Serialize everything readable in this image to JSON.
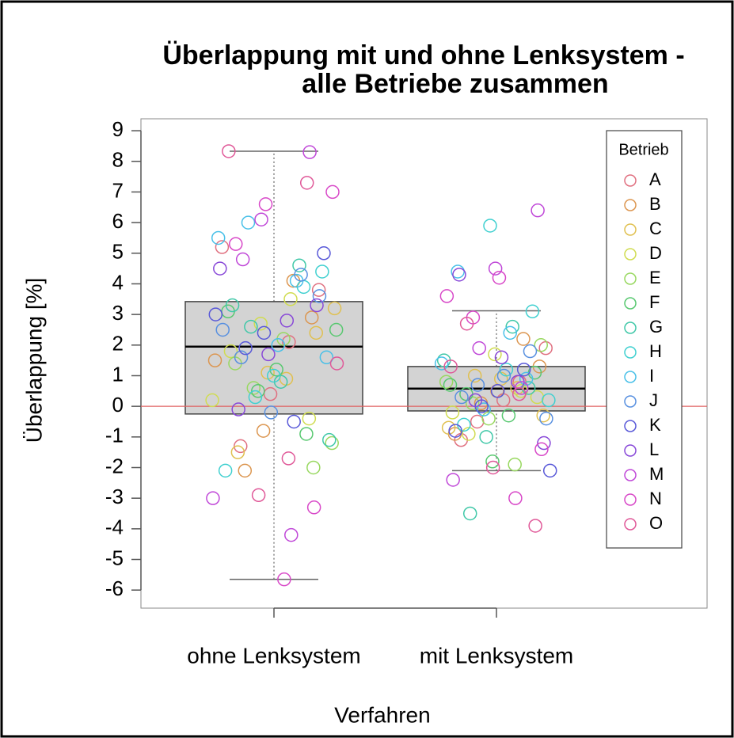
{
  "chart_data": {
    "type": "box",
    "title": [
      "Überlappung mit und ohne Lenksystem -",
      "alle Betriebe zusammen"
    ],
    "xlabel": "Verfahren",
    "ylabel": "Überlappung [%]",
    "categories": [
      "ohne Lenksystem",
      "mit Lenksystem"
    ],
    "boxes": [
      {
        "min": -5.65,
        "q1": -0.25,
        "median": 1.95,
        "q3": 3.42,
        "max": 8.33
      },
      {
        "min": -2.1,
        "q1": -0.15,
        "median": 0.58,
        "q3": 1.3,
        "max": 3.12
      }
    ],
    "box_color": "#d3d3d3",
    "hline": 0,
    "hline_color": "#e06060",
    "ylim": [
      -6.59,
      9.39
    ],
    "yticks": [
      -6,
      -5,
      -4,
      -3,
      -2,
      -1,
      0,
      1,
      2,
      3,
      4,
      5,
      6,
      7,
      8,
      9
    ],
    "legend_title": "Betrieb",
    "legend": "right",
    "series": [
      {
        "name": "A",
        "color": "#e07080",
        "values": [
          [
            2.1,
            -1.3,
            3.8,
            0.4,
            5.2
          ],
          [
            0.8,
            -0.5,
            1.9,
            0.2,
            -1.1
          ]
        ]
      },
      {
        "name": "B",
        "color": "#dc9650",
        "values": [
          [
            2.9,
            -0.8,
            1.5,
            4.1,
            -2.1
          ],
          [
            1.3,
            0.5,
            -0.9,
            2.2,
            0.1
          ]
        ]
      },
      {
        "name": "C",
        "color": "#e0c050",
        "values": [
          [
            3.2,
            0.9,
            -1.5,
            2.4,
            1.1
          ],
          [
            -0.7,
            0.6,
            1.0,
            -0.3,
            0.9
          ]
        ]
      },
      {
        "name": "D",
        "color": "#d0dc50",
        "values": [
          [
            1.8,
            -0.4,
            2.7,
            0.2,
            3.5
          ],
          [
            -0.9,
            0.3,
            1.7,
            -0.2,
            0.5
          ]
        ]
      },
      {
        "name": "E",
        "color": "#98d860",
        "values": [
          [
            0.6,
            -1.2,
            2.2,
            1.4,
            -2.0
          ],
          [
            -0.4,
            0.8,
            -1.9,
            0.1,
            2.0
          ]
        ]
      },
      {
        "name": "F",
        "color": "#58c870",
        "values": [
          [
            1.2,
            3.1,
            -0.9,
            0.5,
            2.5
          ],
          [
            -0.3,
            0.4,
            1.1,
            -1.8,
            0.7
          ]
        ]
      },
      {
        "name": "G",
        "color": "#40c8a8",
        "values": [
          [
            4.6,
            2.6,
            -1.1,
            0.8,
            3.3
          ],
          [
            0.6,
            -1.0,
            1.5,
            2.6,
            -3.5
          ]
        ]
      },
      {
        "name": "H",
        "color": "#40d0d0",
        "values": [
          [
            4.4,
            1.0,
            -2.1,
            3.9,
            0.3
          ],
          [
            0.2,
            1.2,
            -0.6,
            3.1,
            5.9
          ]
        ]
      },
      {
        "name": "I",
        "color": "#48c0e8",
        "values": [
          [
            5.5,
            4.1,
            6.0,
            1.6,
            2.0
          ],
          [
            4.4,
            0.9,
            -0.1,
            1.4,
            2.4
          ]
        ]
      },
      {
        "name": "J",
        "color": "#5890e0",
        "values": [
          [
            1.6,
            3.6,
            -0.2,
            2.5,
            4.3
          ],
          [
            0.7,
            -0.4,
            1.0,
            0.3,
            1.8
          ]
        ]
      },
      {
        "name": "K",
        "color": "#5858d8",
        "values": [
          [
            2.4,
            3.0,
            -0.5,
            1.9,
            5.0
          ],
          [
            0.5,
            -0.8,
            1.2,
            0.0,
            -2.1
          ]
        ]
      },
      {
        "name": "L",
        "color": "#8848d8",
        "values": [
          [
            2.8,
            -0.1,
            3.3,
            1.7,
            4.5
          ],
          [
            0.8,
            0.2,
            -1.2,
            1.6,
            4.3
          ]
        ]
      },
      {
        "name": "M",
        "color": "#c048d8",
        "values": [
          [
            8.3,
            6.1,
            -3.0,
            -4.2,
            4.8
          ],
          [
            6.4,
            4.5,
            -2.4,
            0.6,
            1.9
          ]
        ]
      },
      {
        "name": "N",
        "color": "#d848c8",
        "values": [
          [
            7.0,
            -5.65,
            5.3,
            -3.3,
            6.6
          ],
          [
            3.6,
            -3.0,
            2.9,
            -1.4,
            4.2
          ]
        ]
      },
      {
        "name": "O",
        "color": "#e05898",
        "values": [
          [
            8.33,
            7.3,
            -2.9,
            1.4,
            -1.7
          ],
          [
            2.7,
            -3.9,
            -2.0,
            1.3,
            0.4
          ]
        ]
      }
    ]
  }
}
